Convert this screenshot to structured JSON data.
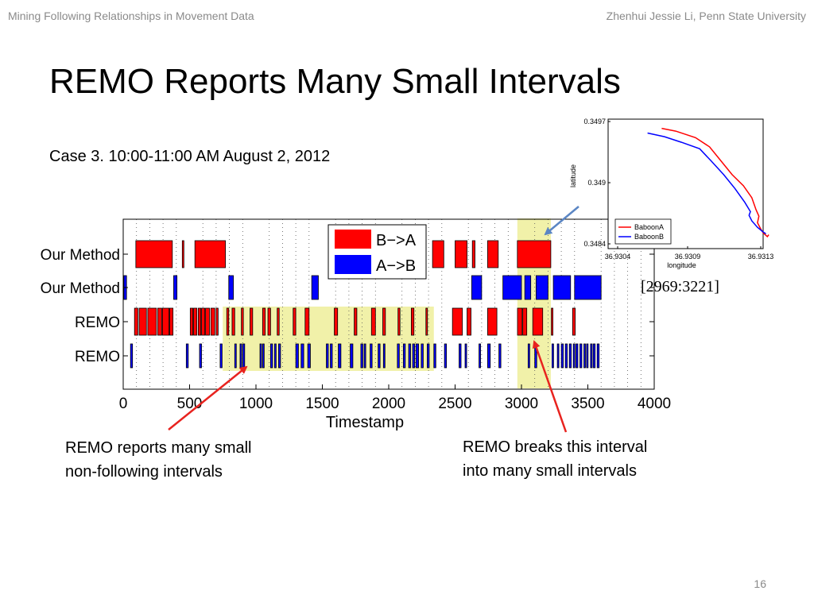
{
  "header": {
    "left": "Mining Following Relationships in Movement Data",
    "right": "Zhenhui Jessie Li, Penn State University"
  },
  "title": "REMO Reports Many Small Intervals",
  "case_line": "Case 3. 10:00-11:00 AM August 2, 2012",
  "range_label": "[2969:3221]",
  "annotations": {
    "left": [
      "REMO reports many small",
      "non-following intervals"
    ],
    "right": [
      "REMO breaks this interval",
      "into many small intervals"
    ]
  },
  "page_number": "16",
  "colors": {
    "b_to_a": "#ff0000",
    "a_to_b": "#0000ff",
    "highlight": "#eeee9a",
    "arrow_red": "#e8231f",
    "arrow_blue": "#5b86c4"
  },
  "chart_data": [
    {
      "type": "timeline",
      "xlabel": "Timestamp",
      "xlim": [
        0,
        4000
      ],
      "xticks": [
        0,
        500,
        1000,
        1500,
        2000,
        2500,
        3000,
        3500,
        4000
      ],
      "rows": [
        "Our Method",
        "Our Method",
        "REMO",
        "REMO"
      ],
      "legend": {
        "position": "top-center",
        "entries": [
          {
            "label": "B−>A",
            "color": "#ff0000"
          },
          {
            "label": "A−>B",
            "color": "#0000ff"
          }
        ]
      },
      "highlights": [
        {
          "x": [
            750,
            2340
          ],
          "rows": [
            2,
            3
          ]
        },
        {
          "x": [
            2969,
            3221
          ],
          "rows": [
            0,
            3
          ]
        }
      ],
      "series": [
        {
          "row": 0,
          "direction": "B->A",
          "intervals": [
            [
              95,
              370
            ],
            [
              445,
              455
            ],
            [
              540,
              770
            ],
            [
              2330,
              2415
            ],
            [
              2500,
              2590
            ],
            [
              2630,
              2650
            ],
            [
              2745,
              2825
            ],
            [
              2969,
              3221
            ]
          ]
        },
        {
          "row": 1,
          "direction": "A->B",
          "intervals": [
            [
              5,
              25
            ],
            [
              380,
              405
            ],
            [
              795,
              830
            ],
            [
              1420,
              1470
            ],
            [
              2625,
              2700
            ],
            [
              2860,
              3000
            ],
            [
              3025,
              3070
            ],
            [
              3110,
              3200
            ],
            [
              3240,
              3370
            ],
            [
              3400,
              3600
            ]
          ]
        },
        {
          "row": 2,
          "direction": "B->A",
          "intervals": [
            [
              85,
              110
            ],
            [
              120,
              175
            ],
            [
              185,
              250
            ],
            [
              260,
              290
            ],
            [
              295,
              345
            ],
            [
              350,
              375
            ],
            [
              505,
              525
            ],
            [
              530,
              555
            ],
            [
              565,
              585
            ],
            [
              590,
              615
            ],
            [
              620,
              650
            ],
            [
              660,
              690
            ],
            [
              700,
              715
            ],
            [
              780,
              795
            ],
            [
              820,
              840
            ],
            [
              890,
              905
            ],
            [
              955,
              975
            ],
            [
              1050,
              1070
            ],
            [
              1090,
              1110
            ],
            [
              1160,
              1175
            ],
            [
              1280,
              1300
            ],
            [
              1370,
              1400
            ],
            [
              1590,
              1615
            ],
            [
              1740,
              1760
            ],
            [
              1870,
              1900
            ],
            [
              1955,
              1975
            ],
            [
              2070,
              2085
            ],
            [
              2170,
              2190
            ],
            [
              2280,
              2290
            ],
            [
              2480,
              2555
            ],
            [
              2590,
              2620
            ],
            [
              2745,
              2815
            ],
            [
              2970,
              3005
            ],
            [
              3010,
              3040
            ],
            [
              3085,
              3160
            ],
            [
              3225,
              3235
            ],
            [
              3385,
              3405
            ]
          ]
        },
        {
          "row": 3,
          "direction": "A->B",
          "intervals": [
            [
              55,
              70
            ],
            [
              475,
              490
            ],
            [
              575,
              590
            ],
            [
              730,
              745
            ],
            [
              840,
              850
            ],
            [
              880,
              890
            ],
            [
              900,
              915
            ],
            [
              1030,
              1040
            ],
            [
              1050,
              1060
            ],
            [
              1110,
              1125
            ],
            [
              1140,
              1150
            ],
            [
              1170,
              1185
            ],
            [
              1300,
              1320
            ],
            [
              1340,
              1360
            ],
            [
              1390,
              1410
            ],
            [
              1530,
              1545
            ],
            [
              1560,
              1575
            ],
            [
              1620,
              1640
            ],
            [
              1710,
              1730
            ],
            [
              1790,
              1805
            ],
            [
              1815,
              1825
            ],
            [
              1860,
              1875
            ],
            [
              1920,
              1935
            ],
            [
              1960,
              1970
            ],
            [
              2065,
              2080
            ],
            [
              2110,
              2125
            ],
            [
              2150,
              2165
            ],
            [
              2180,
              2195
            ],
            [
              2205,
              2225
            ],
            [
              2245,
              2260
            ],
            [
              2290,
              2305
            ],
            [
              2340,
              2355
            ],
            [
              2420,
              2435
            ],
            [
              2530,
              2545
            ],
            [
              2575,
              2585
            ],
            [
              2680,
              2690
            ],
            [
              2745,
              2765
            ],
            [
              2830,
              2845
            ],
            [
              3050,
              3060
            ],
            [
              3100,
              3115
            ],
            [
              3230,
              3240
            ],
            [
              3270,
              3280
            ],
            [
              3300,
              3315
            ],
            [
              3330,
              3345
            ],
            [
              3360,
              3375
            ],
            [
              3390,
              3400
            ],
            [
              3410,
              3425
            ],
            [
              3440,
              3455
            ],
            [
              3470,
              3480
            ],
            [
              3490,
              3500
            ],
            [
              3520,
              3530
            ],
            [
              3540,
              3555
            ],
            [
              3570,
              3585
            ]
          ]
        }
      ]
    },
    {
      "type": "line",
      "xlabel": "longitude",
      "ylabel": "latitude",
      "xlim": [
        36.9302,
        36.9313
      ],
      "ylim": [
        0.3483,
        0.3497
      ],
      "xticks": [
        "36.9304",
        "36.9309",
        "36.9313"
      ],
      "yticks": [
        "0.3497",
        "0.349",
        "0.3484"
      ],
      "legend": {
        "position": "bottom-left"
      },
      "series": [
        {
          "name": "BaboonA",
          "color": "#ff0000",
          "x": [
            36.93058,
            36.93068,
            36.93082,
            36.93092,
            36.931,
            36.93108,
            36.93116,
            36.93122,
            36.93125,
            36.93127,
            36.93126,
            36.93128,
            36.9313,
            36.93133,
            36.93134
          ],
          "y": [
            0.3496,
            0.34957,
            0.3495,
            0.3494,
            0.34925,
            0.3491,
            0.34898,
            0.34885,
            0.34872,
            0.34865,
            0.34858,
            0.34852,
            0.34847,
            0.34843,
            0.34845
          ]
        },
        {
          "name": "BaboonB",
          "color": "#0000ff",
          "x": [
            36.93048,
            36.9306,
            36.93072,
            36.93085,
            36.93093,
            36.93102,
            36.9311,
            36.93117,
            36.93121,
            36.9312,
            36.93122,
            36.93126,
            36.9313,
            36.93132
          ],
          "y": [
            0.34955,
            0.34951,
            0.34945,
            0.34938,
            0.34925,
            0.3491,
            0.34895,
            0.3488,
            0.3487,
            0.34866,
            0.3486,
            0.34853,
            0.34848,
            0.34846
          ]
        }
      ]
    }
  ]
}
